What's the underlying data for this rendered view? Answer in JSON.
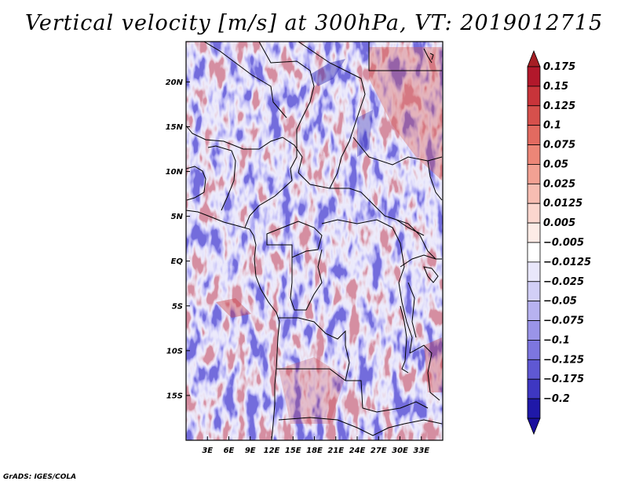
{
  "title": "Vertical velocity [m/s] at 300hPa, VT: 2019012715",
  "footer": "GrADS: IGES/COLA",
  "map": {
    "lon_range": [
      0,
      36
    ],
    "lat_range": [
      -20,
      24.5
    ],
    "lon_ticks": [
      {
        "value": 3,
        "label": "3E"
      },
      {
        "value": 6,
        "label": "6E"
      },
      {
        "value": 9,
        "label": "9E"
      },
      {
        "value": 12,
        "label": "12E"
      },
      {
        "value": 15,
        "label": "15E"
      },
      {
        "value": 18,
        "label": "18E"
      },
      {
        "value": 21,
        "label": "21E"
      },
      {
        "value": 24,
        "label": "24E"
      },
      {
        "value": 27,
        "label": "27E"
      },
      {
        "value": 30,
        "label": "30E"
      },
      {
        "value": 33,
        "label": "33E"
      }
    ],
    "lat_ticks": [
      {
        "value": 20,
        "label": "20N"
      },
      {
        "value": 15,
        "label": "15N"
      },
      {
        "value": 10,
        "label": "10N"
      },
      {
        "value": 5,
        "label": "5N"
      },
      {
        "value": 0,
        "label": "EQ"
      },
      {
        "value": -5,
        "label": "5S"
      },
      {
        "value": -10,
        "label": "10S"
      },
      {
        "value": -15,
        "label": "15S"
      }
    ]
  },
  "colorbar": {
    "levels": [
      {
        "label": "0.175",
        "color": "#b2182b"
      },
      {
        "label": "0.15",
        "color": "#c8343a"
      },
      {
        "label": "0.125",
        "color": "#d6504c"
      },
      {
        "label": "0.1",
        "color": "#e26a60"
      },
      {
        "label": "0.075",
        "color": "#ec8677"
      },
      {
        "label": "0.05",
        "color": "#f2a193"
      },
      {
        "label": "0.025",
        "color": "#f7bdb2"
      },
      {
        "label": "0.0125",
        "color": "#fbd6ce"
      },
      {
        "label": "0.005",
        "color": "#fdebe6"
      },
      {
        "label": "−0.005",
        "color": "#ffffff"
      },
      {
        "label": "−0.0125",
        "color": "#e9e7fb"
      },
      {
        "label": "−0.025",
        "color": "#d2cff6"
      },
      {
        "label": "−0.05",
        "color": "#b7b2f0"
      },
      {
        "label": "−0.075",
        "color": "#9a94e8"
      },
      {
        "label": "−0.1",
        "color": "#7d76df"
      },
      {
        "label": "−0.125",
        "color": "#5f58d3"
      },
      {
        "label": "−0.175",
        "color": "#3e37c2"
      },
      {
        "label": "−0.2",
        "color": "#1f18a8"
      }
    ],
    "top_color": "#a51e24",
    "bottom_color": "#1a0f9e"
  }
}
